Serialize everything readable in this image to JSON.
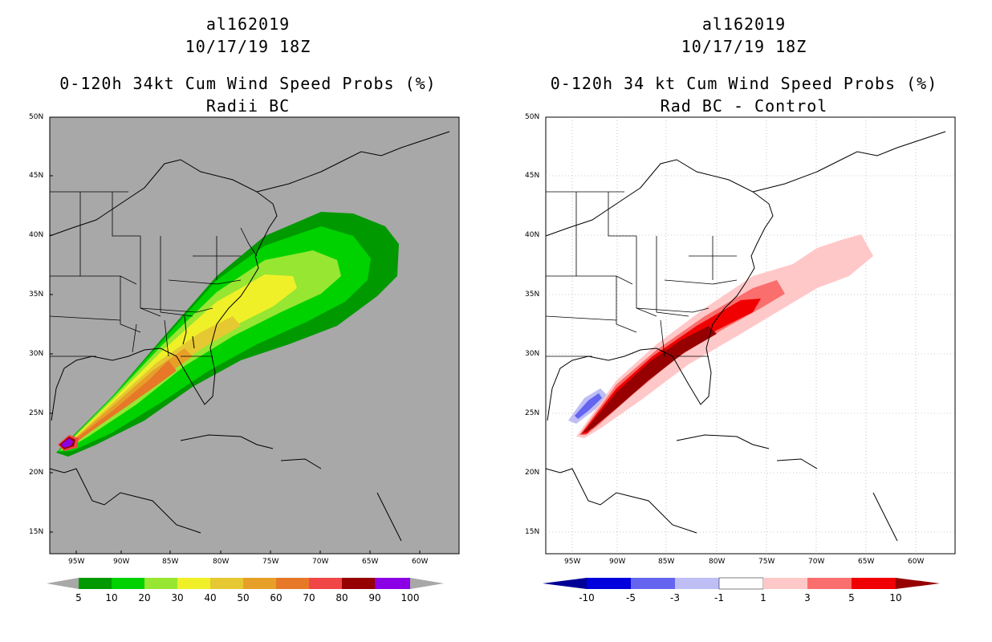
{
  "panels": [
    {
      "storm_id": "al162019",
      "datetime": "10/17/19 18Z",
      "title": "0-120h 34kt Cum Wind Speed Probs (%)",
      "subtitle": "Radii BC",
      "background_color": "#a8a8a8",
      "colorbar_labels": [
        "5",
        "10",
        "20",
        "30",
        "40",
        "50",
        "60",
        "70",
        "80",
        "90",
        "100"
      ],
      "colorbar_colors": [
        "#009a00",
        "#00d200",
        "#96e632",
        "#f0f028",
        "#e6c832",
        "#e6a028",
        "#e67828",
        "#f04646",
        "#960000",
        "#8c00e6"
      ]
    },
    {
      "storm_id": "al162019",
      "datetime": "10/17/19 18Z",
      "title": "0-120h 34 kt Cum Wind Speed Probs (%)",
      "subtitle": "Rad BC - Control",
      "background_color": "#ffffff",
      "colorbar_labels": [
        "-10",
        "-5",
        "-3",
        "-1",
        "1",
        "3",
        "5",
        "10"
      ],
      "colorbar_colors": [
        "#0000dc",
        "#6464f0",
        "#bebef5",
        "#ffffff",
        "#ffc8c8",
        "#fa6e6e",
        "#f00000"
      ]
    }
  ],
  "axes": {
    "lat_labels": [
      "50N",
      "45N",
      "40N",
      "35N",
      "30N",
      "25N",
      "20N",
      "15N"
    ],
    "lon_labels": [
      "95W",
      "90W",
      "85W",
      "80W",
      "75W",
      "70W",
      "65W",
      "60W"
    ]
  }
}
